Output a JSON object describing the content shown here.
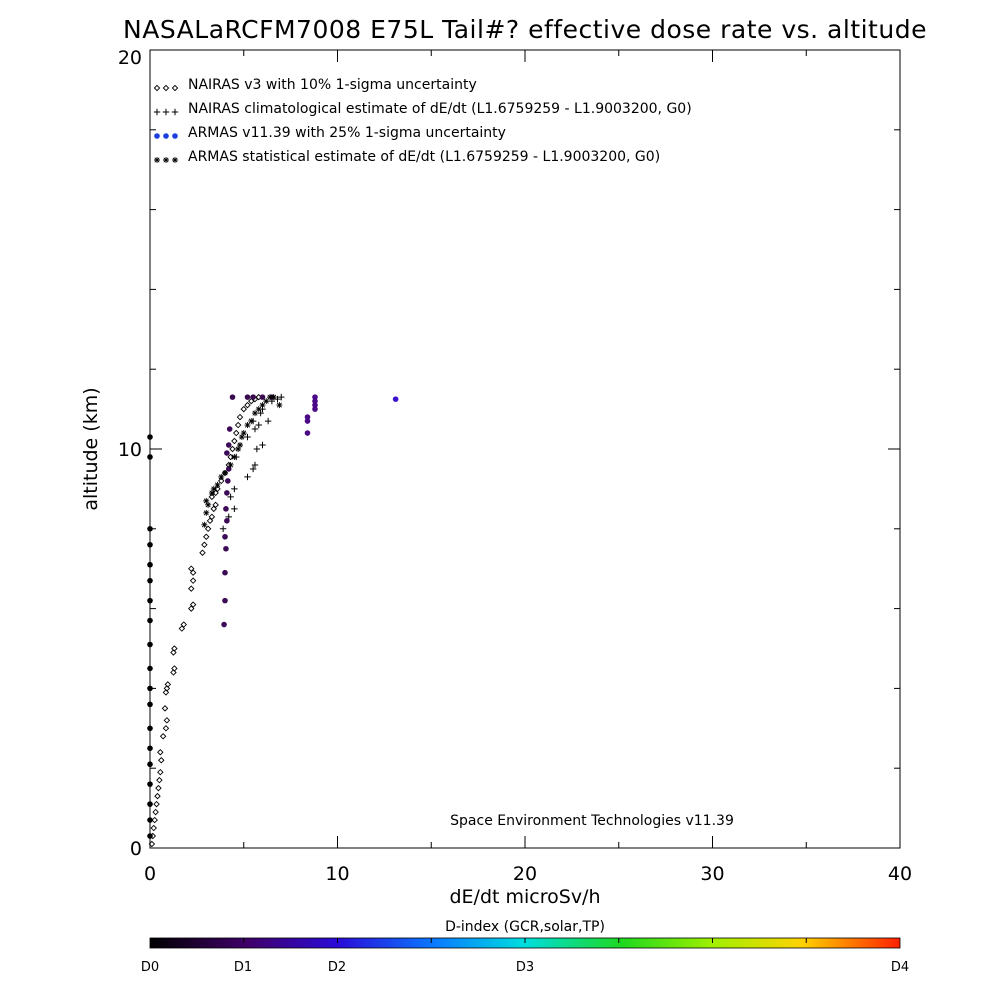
{
  "chart_data": {
    "type": "scatter",
    "title": "NASALaRCFM7008  E75L Tail#? effective dose rate vs. altitude",
    "xlabel": "dE/dt microSv/h",
    "ylabel": "altitude (km)",
    "xlim": [
      0,
      40
    ],
    "ylim": [
      0,
      20
    ],
    "x_ticks": [
      "0",
      "10",
      "20",
      "30",
      "40"
    ],
    "y_ticks": [
      "0",
      "10",
      "20"
    ],
    "grid": false,
    "legend_position": "top-left",
    "annotation": "Space Environment Technologies v11.39",
    "series": [
      {
        "name": "NAIRAS v3 with 10% 1-sigma uncertainty",
        "marker": "diamond",
        "color": "#000000",
        "points": [
          [
            0.1,
            0.1
          ],
          [
            0.15,
            0.3
          ],
          [
            0.2,
            0.5
          ],
          [
            0.25,
            0.7
          ],
          [
            0.3,
            0.9
          ],
          [
            0.35,
            1.1
          ],
          [
            0.4,
            1.3
          ],
          [
            0.45,
            1.5
          ],
          [
            0.5,
            1.7
          ],
          [
            0.55,
            1.9
          ],
          [
            0.6,
            2.2
          ],
          [
            0.55,
            2.4
          ],
          [
            0.7,
            2.8
          ],
          [
            0.85,
            3.0
          ],
          [
            0.9,
            3.2
          ],
          [
            0.8,
            3.5
          ],
          [
            0.85,
            3.9
          ],
          [
            0.9,
            4.0
          ],
          [
            0.95,
            4.1
          ],
          [
            1.25,
            4.4
          ],
          [
            1.3,
            4.5
          ],
          [
            1.25,
            4.9
          ],
          [
            1.3,
            5.0
          ],
          [
            1.7,
            5.5
          ],
          [
            1.8,
            5.6
          ],
          [
            2.2,
            6.0
          ],
          [
            2.3,
            6.1
          ],
          [
            2.2,
            6.5
          ],
          [
            2.3,
            6.7
          ],
          [
            2.3,
            6.9
          ],
          [
            2.2,
            7.0
          ],
          [
            2.8,
            7.4
          ],
          [
            2.9,
            7.6
          ],
          [
            3.0,
            7.8
          ],
          [
            3.1,
            8.0
          ],
          [
            3.2,
            8.2
          ],
          [
            3.3,
            8.3
          ],
          [
            3.4,
            8.5
          ],
          [
            3.5,
            8.6
          ],
          [
            3.3,
            8.8
          ],
          [
            3.5,
            8.9
          ],
          [
            3.6,
            9.0
          ],
          [
            3.8,
            9.2
          ],
          [
            4.0,
            9.4
          ],
          [
            4.2,
            9.6
          ],
          [
            4.3,
            9.8
          ],
          [
            4.4,
            10.0
          ],
          [
            4.5,
            10.2
          ],
          [
            4.6,
            10.4
          ],
          [
            4.7,
            10.6
          ],
          [
            4.8,
            10.8
          ],
          [
            5.0,
            11.0
          ],
          [
            5.2,
            11.1
          ],
          [
            5.4,
            11.2
          ],
          [
            5.6,
            11.25
          ],
          [
            5.8,
            11.3
          ]
        ]
      },
      {
        "name": "NAIRAS climatological estimate of dE/dt (L1.6759259 - L1.9003200, G0)",
        "marker": "plus",
        "color": "#000000",
        "points": [
          [
            3.9,
            8.0
          ],
          [
            4.2,
            8.3
          ],
          [
            4.5,
            8.5
          ],
          [
            4.3,
            8.8
          ],
          [
            4.5,
            9.0
          ],
          [
            5.2,
            9.3
          ],
          [
            5.5,
            9.5
          ],
          [
            5.6,
            9.6
          ],
          [
            4.6,
            9.8
          ],
          [
            5.7,
            10.0
          ],
          [
            6.0,
            10.1
          ],
          [
            5.2,
            10.3
          ],
          [
            5.6,
            10.5
          ],
          [
            5.8,
            10.6
          ],
          [
            5.5,
            10.7
          ],
          [
            5.9,
            10.9
          ],
          [
            6.3,
            10.7
          ],
          [
            6.0,
            11.0
          ],
          [
            6.5,
            11.2
          ],
          [
            6.8,
            11.25
          ],
          [
            7.0,
            11.3
          ]
        ]
      },
      {
        "name": "ARMAS v11.39 with 25% 1-sigma uncertainty",
        "marker": "dot",
        "color": "#1a3fdd",
        "points": [
          [
            0.0,
            0.3
          ],
          [
            0.0,
            0.7
          ],
          [
            0.0,
            1.1
          ],
          [
            0.0,
            1.6
          ],
          [
            0.0,
            2.1
          ],
          [
            0.0,
            2.5
          ],
          [
            0.0,
            3.0
          ],
          [
            0.0,
            3.6
          ],
          [
            0.0,
            4.0
          ],
          [
            0.0,
            4.5
          ],
          [
            0.0,
            5.1
          ],
          [
            0.0,
            5.7
          ],
          [
            0.0,
            6.2
          ],
          [
            0.0,
            6.7
          ],
          [
            0.0,
            7.1
          ],
          [
            0.0,
            7.6
          ],
          [
            0.0,
            8.0
          ],
          [
            0.0,
            9.8
          ],
          [
            0.0,
            10.3
          ],
          [
            3.95,
            5.6
          ],
          [
            4.0,
            6.2
          ],
          [
            4.0,
            6.9
          ],
          [
            4.05,
            7.5
          ],
          [
            4.0,
            7.8
          ],
          [
            4.1,
            8.2
          ],
          [
            4.05,
            8.5
          ],
          [
            4.1,
            8.9
          ],
          [
            4.15,
            9.2
          ],
          [
            4.2,
            9.5
          ],
          [
            4.1,
            9.9
          ],
          [
            4.2,
            10.1
          ],
          [
            4.25,
            10.5
          ],
          [
            4.4,
            11.3
          ],
          [
            5.2,
            11.3
          ],
          [
            5.5,
            11.3
          ],
          [
            6.0,
            11.3
          ],
          [
            6.5,
            11.3
          ],
          [
            8.4,
            10.4
          ],
          [
            8.4,
            10.7
          ],
          [
            8.4,
            10.8
          ],
          [
            8.8,
            11.0
          ],
          [
            8.8,
            11.1
          ],
          [
            8.8,
            11.2
          ],
          [
            8.8,
            11.3
          ],
          [
            13.1,
            11.25
          ]
        ]
      },
      {
        "name": "ARMAS statistical estimate of dE/dt (L1.6759259 - L1.9003200, G0)",
        "marker": "asterisk",
        "color": "#000000",
        "points": [
          [
            2.9,
            8.1
          ],
          [
            3.0,
            8.4
          ],
          [
            3.1,
            8.6
          ],
          [
            3.0,
            8.7
          ],
          [
            3.3,
            8.9
          ],
          [
            3.4,
            9.0
          ],
          [
            3.6,
            9.1
          ],
          [
            3.8,
            9.3
          ],
          [
            4.0,
            9.4
          ],
          [
            4.3,
            9.6
          ],
          [
            4.5,
            9.8
          ],
          [
            4.7,
            10.0
          ],
          [
            4.8,
            10.1
          ],
          [
            4.9,
            10.3
          ],
          [
            5.0,
            10.4
          ],
          [
            5.2,
            10.6
          ],
          [
            5.4,
            10.7
          ],
          [
            5.6,
            10.9
          ],
          [
            5.8,
            11.0
          ],
          [
            6.0,
            11.1
          ],
          [
            6.2,
            11.2
          ],
          [
            6.4,
            11.3
          ],
          [
            6.6,
            11.3
          ],
          [
            6.9,
            11.1
          ]
        ]
      }
    ],
    "colorbar": {
      "title": "D-index (GCR,solar,TP)",
      "labels": [
        "D0",
        "D1",
        "D2",
        "D3",
        "D4"
      ]
    }
  }
}
